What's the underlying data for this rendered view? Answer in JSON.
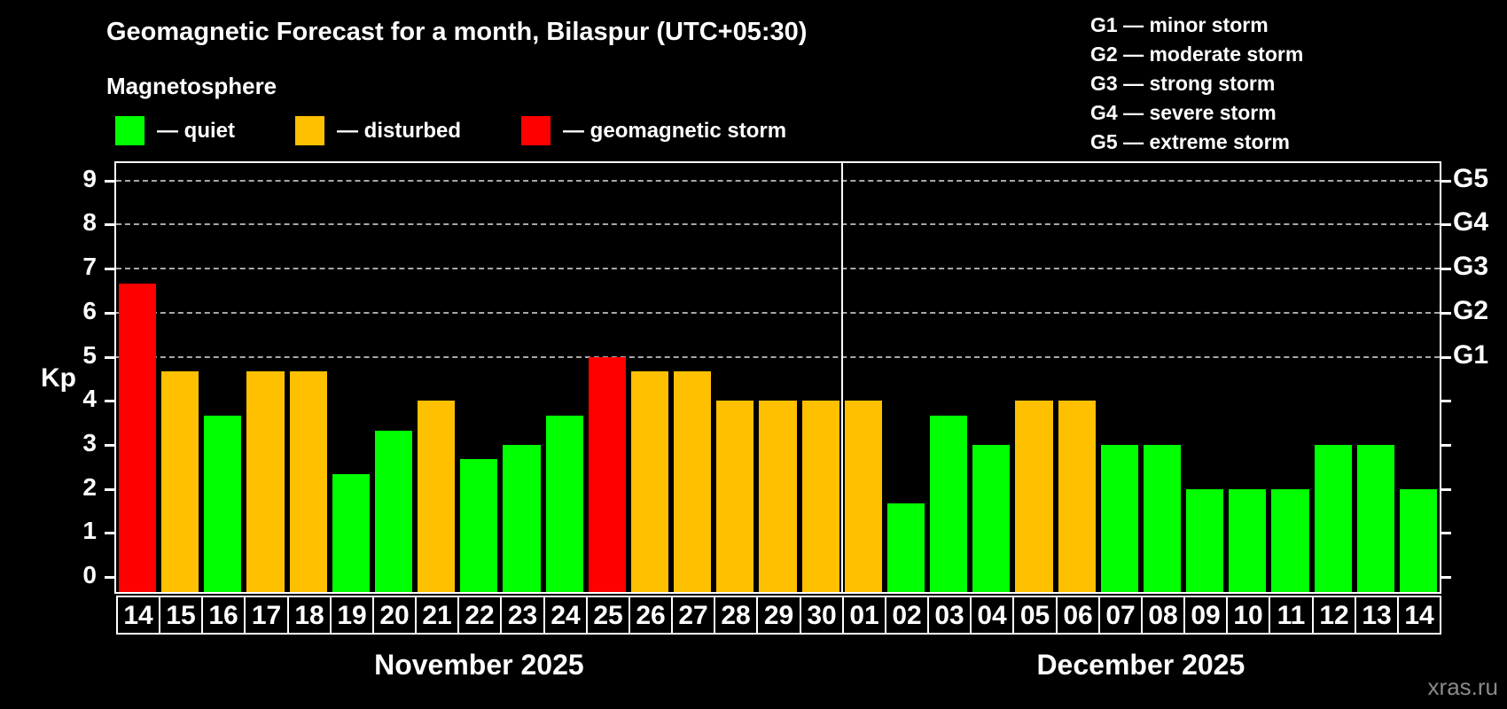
{
  "title": "Geomagnetic Forecast for a month, Bilaspur (UTC+05:30)",
  "subtitle": "Magnetosphere",
  "legend": {
    "quiet_label": "— quiet",
    "disturbed_label": "— disturbed",
    "storm_label": "— geomagnetic storm"
  },
  "g_legend": [
    "G1 — minor storm",
    "G2 — moderate storm",
    "G3 — strong storm",
    "G4 — severe storm",
    "G5 — extreme storm"
  ],
  "colors": {
    "quiet": "#00ff00",
    "disturbed": "#ffc000",
    "storm": "#ff0000",
    "background": "#000000",
    "grid": "#a8a8a8",
    "frame": "#ffffff",
    "watermark_color": "#8a8a8a"
  },
  "axes": {
    "y_label": "Kp",
    "y_ticks": [
      "0",
      "1",
      "2",
      "3",
      "4",
      "5",
      "6",
      "7",
      "8",
      "9"
    ],
    "g_scale": [
      {
        "label": "G1",
        "kp": 5
      },
      {
        "label": "G2",
        "kp": 6
      },
      {
        "label": "G3",
        "kp": 7
      },
      {
        "label": "G4",
        "kp": 8
      },
      {
        "label": "G5",
        "kp": 9
      }
    ]
  },
  "watermark": "xras.ru",
  "chart_data": {
    "type": "bar",
    "title": "Geomagnetic Forecast for a month, Bilaspur (UTC+05:30)",
    "xlabel": "",
    "ylabel": "Kp",
    "ylim": [
      0,
      9.4
    ],
    "grid": "dashed horizontal at Kp 5-9 only",
    "legend_position": "top-left",
    "gridlines": [
      5,
      6,
      7,
      8,
      9
    ],
    "months": [
      {
        "label": "November 2025",
        "days": [
          {
            "day": "14",
            "kp": 6.67,
            "status": "storm"
          },
          {
            "day": "15",
            "kp": 4.67,
            "status": "disturbed"
          },
          {
            "day": "16",
            "kp": 3.67,
            "status": "quiet"
          },
          {
            "day": "17",
            "kp": 4.67,
            "status": "disturbed"
          },
          {
            "day": "18",
            "kp": 4.67,
            "status": "disturbed"
          },
          {
            "day": "19",
            "kp": 2.33,
            "status": "quiet"
          },
          {
            "day": "20",
            "kp": 3.33,
            "status": "quiet"
          },
          {
            "day": "21",
            "kp": 4.0,
            "status": "disturbed"
          },
          {
            "day": "22",
            "kp": 2.67,
            "status": "quiet"
          },
          {
            "day": "23",
            "kp": 3.0,
            "status": "quiet"
          },
          {
            "day": "24",
            "kp": 3.67,
            "status": "quiet"
          },
          {
            "day": "25",
            "kp": 5.0,
            "status": "storm"
          },
          {
            "day": "26",
            "kp": 4.67,
            "status": "disturbed"
          },
          {
            "day": "27",
            "kp": 4.67,
            "status": "disturbed"
          },
          {
            "day": "28",
            "kp": 4.0,
            "status": "disturbed"
          },
          {
            "day": "29",
            "kp": 4.0,
            "status": "disturbed"
          },
          {
            "day": "30",
            "kp": 4.0,
            "status": "disturbed"
          }
        ]
      },
      {
        "label": "December 2025",
        "days": [
          {
            "day": "01",
            "kp": 4.0,
            "status": "disturbed"
          },
          {
            "day": "02",
            "kp": 1.67,
            "status": "quiet"
          },
          {
            "day": "03",
            "kp": 3.67,
            "status": "quiet"
          },
          {
            "day": "04",
            "kp": 3.0,
            "status": "quiet"
          },
          {
            "day": "05",
            "kp": 4.0,
            "status": "disturbed"
          },
          {
            "day": "06",
            "kp": 4.0,
            "status": "disturbed"
          },
          {
            "day": "07",
            "kp": 3.0,
            "status": "quiet"
          },
          {
            "day": "08",
            "kp": 3.0,
            "status": "quiet"
          },
          {
            "day": "09",
            "kp": 2.0,
            "status": "quiet"
          },
          {
            "day": "10",
            "kp": 2.0,
            "status": "quiet"
          },
          {
            "day": "11",
            "kp": 2.0,
            "status": "quiet"
          },
          {
            "day": "12",
            "kp": 3.0,
            "status": "quiet"
          },
          {
            "day": "13",
            "kp": 3.0,
            "status": "quiet"
          },
          {
            "day": "14",
            "kp": 2.0,
            "status": "quiet"
          }
        ]
      }
    ]
  }
}
